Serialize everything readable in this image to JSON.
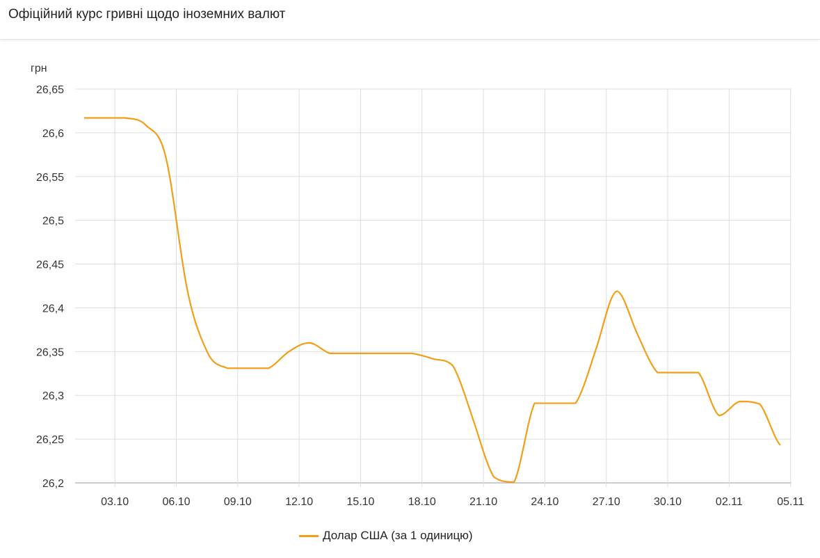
{
  "title": "Офіційний курс гривні щодо іноземних валют",
  "chart_data": {
    "type": "line",
    "ylabel": "грн",
    "ylim": [
      26.2,
      26.65
    ],
    "yticks": [
      "26,65",
      "26,6",
      "26,55",
      "26,5",
      "26,45",
      "26,4",
      "26,35",
      "26,3",
      "26,25",
      "26,2"
    ],
    "ytick_values": [
      26.65,
      26.6,
      26.55,
      26.5,
      26.45,
      26.4,
      26.35,
      26.3,
      26.25,
      26.2
    ],
    "xticks": [
      "03.10",
      "06.10",
      "09.10",
      "12.10",
      "15.10",
      "18.10",
      "21.10",
      "24.10",
      "27.10",
      "30.10",
      "02.11",
      "05.11"
    ],
    "grid": true,
    "legend_placement": "bottom",
    "series": [
      {
        "name": "Долар США (за 1 одиницю)",
        "color": "#f29e16",
        "x": [
          "01.10",
          "02.10",
          "03.10",
          "04.10",
          "05.10",
          "06.10",
          "07.10",
          "08.10",
          "09.10",
          "10.10",
          "11.10",
          "12.10",
          "13.10",
          "14.10",
          "15.10",
          "16.10",
          "17.10",
          "18.10",
          "19.10",
          "20.10",
          "21.10",
          "22.10",
          "23.10",
          "24.10",
          "25.10",
          "26.10",
          "27.10",
          "28.10",
          "29.10",
          "30.10",
          "31.10",
          "01.11",
          "02.11",
          "03.11",
          "04.11"
        ],
        "values": [
          26.617,
          26.617,
          26.617,
          26.609,
          26.571,
          26.425,
          26.35,
          26.331,
          26.331,
          26.331,
          26.35,
          26.36,
          26.348,
          26.348,
          26.348,
          26.348,
          26.348,
          26.342,
          26.334,
          26.272,
          26.207,
          26.201,
          26.291,
          26.291,
          26.291,
          26.353,
          26.419,
          26.371,
          26.326,
          26.326,
          26.326,
          26.277,
          26.293,
          26.29,
          26.243
        ]
      }
    ]
  }
}
